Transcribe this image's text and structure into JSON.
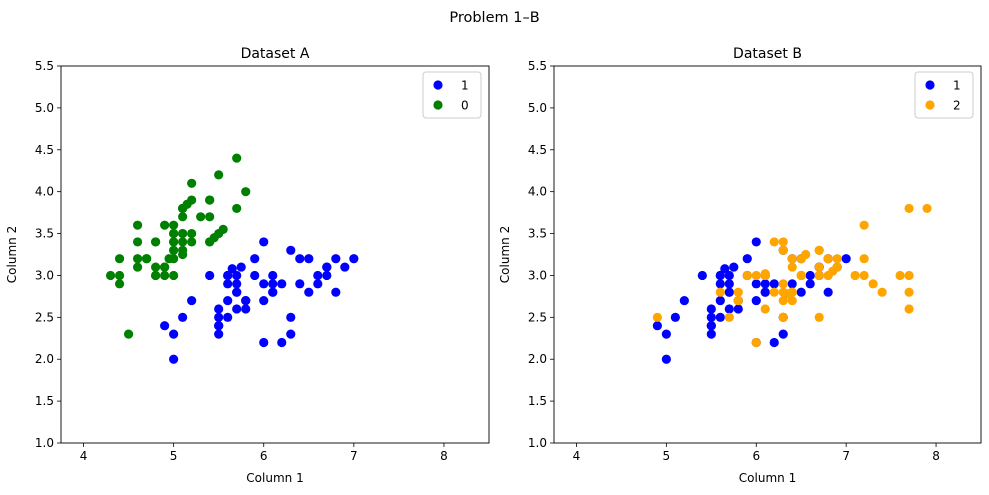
{
  "figure": {
    "suptitle": "Problem 1–B"
  },
  "chart_data": [
    {
      "type": "scatter",
      "title": "Dataset A",
      "xlabel": "Column 1",
      "ylabel": "Column 2",
      "xlim": [
        3.75,
        8.5
      ],
      "ylim": [
        1.0,
        5.5
      ],
      "xticks": [
        4,
        5,
        6,
        7,
        8
      ],
      "yticks": [
        1.0,
        1.5,
        2.0,
        2.5,
        3.0,
        3.5,
        4.0,
        4.5,
        5.0,
        5.5
      ],
      "grid": false,
      "legend_position": "upper right",
      "series": [
        {
          "name": "1",
          "color": "#0000ff",
          "points": [
            [
              7.0,
              3.2
            ],
            [
              6.4,
              3.2
            ],
            [
              6.9,
              3.1
            ],
            [
              5.5,
              2.3
            ],
            [
              6.5,
              2.8
            ],
            [
              5.7,
              2.8
            ],
            [
              6.3,
              3.3
            ],
            [
              4.9,
              2.4
            ],
            [
              6.6,
              2.9
            ],
            [
              5.2,
              2.7
            ],
            [
              5.0,
              2.0
            ],
            [
              5.9,
              3.0
            ],
            [
              6.0,
              2.2
            ],
            [
              6.1,
              2.9
            ],
            [
              5.6,
              2.9
            ],
            [
              6.7,
              3.1
            ],
            [
              5.6,
              3.0
            ],
            [
              5.8,
              2.7
            ],
            [
              6.2,
              2.2
            ],
            [
              5.6,
              2.5
            ],
            [
              5.9,
              3.2
            ],
            [
              6.1,
              2.8
            ],
            [
              6.3,
              2.5
            ],
            [
              6.1,
              2.8
            ],
            [
              6.4,
              2.9
            ],
            [
              6.6,
              3.0
            ],
            [
              6.8,
              2.8
            ],
            [
              6.7,
              3.0
            ],
            [
              6.0,
              2.9
            ],
            [
              5.7,
              2.6
            ],
            [
              5.5,
              2.4
            ],
            [
              5.5,
              2.4
            ],
            [
              5.8,
              2.7
            ],
            [
              6.0,
              2.7
            ],
            [
              5.4,
              3.0
            ],
            [
              6.0,
              3.4
            ],
            [
              6.7,
              3.1
            ],
            [
              6.3,
              2.3
            ],
            [
              5.6,
              3.0
            ],
            [
              5.5,
              2.5
            ],
            [
              5.5,
              2.6
            ],
            [
              6.1,
              3.0
            ],
            [
              5.8,
              2.6
            ],
            [
              5.0,
              2.3
            ],
            [
              5.6,
              2.7
            ],
            [
              5.7,
              3.0
            ],
            [
              5.7,
              2.9
            ],
            [
              6.2,
              2.9
            ],
            [
              5.1,
              2.5
            ],
            [
              5.7,
              2.8
            ],
            [
              6.8,
              3.2
            ],
            [
              6.5,
              3.2
            ],
            [
              5.65,
              3.08
            ],
            [
              5.75,
              3.1
            ]
          ]
        },
        {
          "name": "0",
          "color": "#008000",
          "points": [
            [
              5.1,
              3.5
            ],
            [
              4.9,
              3.0
            ],
            [
              4.7,
              3.2
            ],
            [
              4.6,
              3.1
            ],
            [
              5.0,
              3.6
            ],
            [
              5.4,
              3.9
            ],
            [
              4.6,
              3.4
            ],
            [
              5.0,
              3.4
            ],
            [
              4.4,
              2.9
            ],
            [
              4.9,
              3.1
            ],
            [
              5.4,
              3.7
            ],
            [
              4.8,
              3.4
            ],
            [
              4.8,
              3.0
            ],
            [
              4.3,
              3.0
            ],
            [
              5.8,
              4.0
            ],
            [
              5.7,
              4.4
            ],
            [
              5.4,
              3.9
            ],
            [
              5.1,
              3.5
            ],
            [
              5.7,
              3.8
            ],
            [
              5.1,
              3.8
            ],
            [
              5.4,
              3.4
            ],
            [
              5.1,
              3.7
            ],
            [
              4.6,
              3.6
            ],
            [
              5.1,
              3.3
            ],
            [
              4.8,
              3.4
            ],
            [
              5.0,
              3.0
            ],
            [
              5.0,
              3.4
            ],
            [
              5.2,
              3.5
            ],
            [
              5.2,
              3.4
            ],
            [
              4.7,
              3.2
            ],
            [
              4.8,
              3.1
            ],
            [
              5.4,
              3.4
            ],
            [
              5.2,
              4.1
            ],
            [
              5.5,
              4.2
            ],
            [
              4.9,
              3.1
            ],
            [
              5.0,
              3.2
            ],
            [
              5.5,
              3.5
            ],
            [
              4.9,
              3.6
            ],
            [
              4.4,
              3.0
            ],
            [
              5.1,
              3.4
            ],
            [
              5.0,
              3.5
            ],
            [
              4.5,
              2.3
            ],
            [
              4.4,
              3.2
            ],
            [
              5.0,
              3.5
            ],
            [
              5.1,
              3.8
            ],
            [
              4.8,
              3.0
            ],
            [
              5.1,
              3.8
            ],
            [
              4.6,
              3.2
            ],
            [
              5.3,
              3.7
            ],
            [
              5.0,
              3.3
            ],
            [
              5.15,
              3.85
            ],
            [
              5.2,
              3.9
            ],
            [
              5.55,
              3.55
            ],
            [
              4.95,
              3.2
            ],
            [
              5.45,
              3.45
            ],
            [
              5.1,
              3.25
            ]
          ]
        }
      ]
    },
    {
      "type": "scatter",
      "title": "Dataset B",
      "xlabel": "Column 1",
      "ylabel": "Column 2",
      "xlim": [
        3.75,
        8.5
      ],
      "ylim": [
        1.0,
        5.5
      ],
      "xticks": [
        4,
        5,
        6,
        7,
        8
      ],
      "yticks": [
        1.0,
        1.5,
        2.0,
        2.5,
        3.0,
        3.5,
        4.0,
        4.5,
        5.0,
        5.5
      ],
      "grid": false,
      "legend_position": "upper right",
      "series": [
        {
          "name": "1",
          "color": "#0000ff",
          "points": [
            [
              7.0,
              3.2
            ],
            [
              6.4,
              3.2
            ],
            [
              6.9,
              3.1
            ],
            [
              5.5,
              2.3
            ],
            [
              6.5,
              2.8
            ],
            [
              5.7,
              2.8
            ],
            [
              6.3,
              3.3
            ],
            [
              4.9,
              2.4
            ],
            [
              6.6,
              2.9
            ],
            [
              5.2,
              2.7
            ],
            [
              5.0,
              2.0
            ],
            [
              5.9,
              3.0
            ],
            [
              6.0,
              2.2
            ],
            [
              6.1,
              2.9
            ],
            [
              5.6,
              2.9
            ],
            [
              6.7,
              3.1
            ],
            [
              5.6,
              3.0
            ],
            [
              5.8,
              2.7
            ],
            [
              6.2,
              2.2
            ],
            [
              5.6,
              2.5
            ],
            [
              5.9,
              3.2
            ],
            [
              6.1,
              2.8
            ],
            [
              6.3,
              2.5
            ],
            [
              6.1,
              2.8
            ],
            [
              6.4,
              2.9
            ],
            [
              6.6,
              3.0
            ],
            [
              6.8,
              2.8
            ],
            [
              6.7,
              3.0
            ],
            [
              6.0,
              2.9
            ],
            [
              5.7,
              2.6
            ],
            [
              5.5,
              2.4
            ],
            [
              5.5,
              2.4
            ],
            [
              5.8,
              2.7
            ],
            [
              6.0,
              2.7
            ],
            [
              5.4,
              3.0
            ],
            [
              6.0,
              3.4
            ],
            [
              6.7,
              3.1
            ],
            [
              6.3,
              2.3
            ],
            [
              5.6,
              3.0
            ],
            [
              5.5,
              2.5
            ],
            [
              5.5,
              2.6
            ],
            [
              6.1,
              3.0
            ],
            [
              5.8,
              2.6
            ],
            [
              5.0,
              2.3
            ],
            [
              5.6,
              2.7
            ],
            [
              5.7,
              3.0
            ],
            [
              5.7,
              2.9
            ],
            [
              6.2,
              2.9
            ],
            [
              5.1,
              2.5
            ],
            [
              5.7,
              2.8
            ],
            [
              6.8,
              3.2
            ],
            [
              6.5,
              3.2
            ],
            [
              5.65,
              3.08
            ],
            [
              5.75,
              3.1
            ]
          ]
        },
        {
          "name": "2",
          "color": "#ffa500",
          "points": [
            [
              6.3,
              3.3
            ],
            [
              5.8,
              2.7
            ],
            [
              7.1,
              3.0
            ],
            [
              6.3,
              2.9
            ],
            [
              6.5,
              3.0
            ],
            [
              7.6,
              3.0
            ],
            [
              4.9,
              2.5
            ],
            [
              7.3,
              2.9
            ],
            [
              6.7,
              2.5
            ],
            [
              7.2,
              3.6
            ],
            [
              6.5,
              3.2
            ],
            [
              6.4,
              2.7
            ],
            [
              6.8,
              3.0
            ],
            [
              5.7,
              2.5
            ],
            [
              5.8,
              2.8
            ],
            [
              6.4,
              3.2
            ],
            [
              6.5,
              3.0
            ],
            [
              7.7,
              3.8
            ],
            [
              7.7,
              2.6
            ],
            [
              6.0,
              2.2
            ],
            [
              6.9,
              3.2
            ],
            [
              5.6,
              2.8
            ],
            [
              7.7,
              2.8
            ],
            [
              6.3,
              2.7
            ],
            [
              6.7,
              3.3
            ],
            [
              7.2,
              3.2
            ],
            [
              6.2,
              2.8
            ],
            [
              6.1,
              3.0
            ],
            [
              6.4,
              2.8
            ],
            [
              7.2,
              3.0
            ],
            [
              7.4,
              2.8
            ],
            [
              7.9,
              3.8
            ],
            [
              6.4,
              2.8
            ],
            [
              6.3,
              2.8
            ],
            [
              6.1,
              2.6
            ],
            [
              7.7,
              3.0
            ],
            [
              6.3,
              3.4
            ],
            [
              6.4,
              3.1
            ],
            [
              6.0,
              3.0
            ],
            [
              6.9,
              3.1
            ],
            [
              6.7,
              3.1
            ],
            [
              6.9,
              3.1
            ],
            [
              5.8,
              2.7
            ],
            [
              6.8,
              3.2
            ],
            [
              6.7,
              3.3
            ],
            [
              6.7,
              3.0
            ],
            [
              6.3,
              2.5
            ],
            [
              6.5,
              3.0
            ],
            [
              6.2,
              3.4
            ],
            [
              5.9,
              3.0
            ],
            [
              6.55,
              3.25
            ],
            [
              6.85,
              3.05
            ],
            [
              6.1,
              3.02
            ],
            [
              6.35,
              2.78
            ]
          ]
        }
      ]
    }
  ]
}
